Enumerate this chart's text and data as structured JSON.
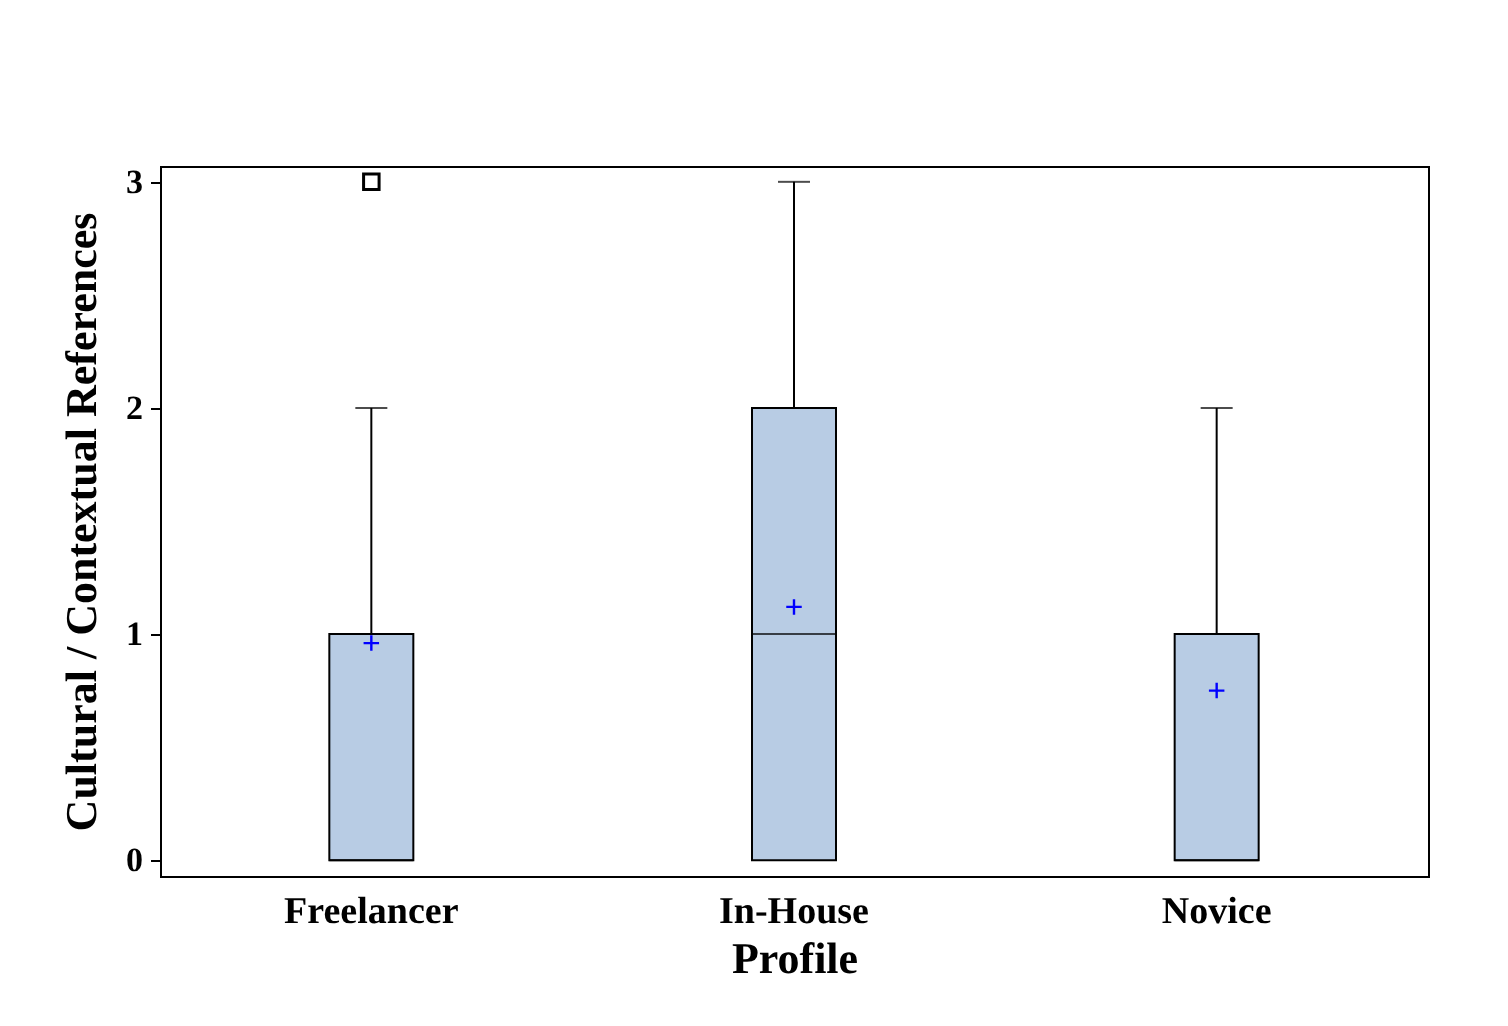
{
  "chart_data": {
    "type": "box",
    "xlabel": "Profile",
    "ylabel": "Cultural / Contextual References",
    "categories": [
      "Freelancer",
      "In-House",
      "Novice"
    ],
    "series": [
      {
        "color": "#b8cce4",
        "boxes": [
          {
            "low": 0,
            "q1": 0,
            "median": 0,
            "q3": 1,
            "high": 2,
            "mean": 0.96,
            "outliers": [
              3
            ]
          },
          {
            "low": 0,
            "q1": 0,
            "median": 1,
            "q3": 2,
            "high": 3,
            "mean": 1.12
          },
          {
            "low": 0,
            "q1": 0,
            "median": 0,
            "q3": 1,
            "high": 2,
            "mean": 0.75
          }
        ]
      }
    ],
    "ylim": [
      -0.07,
      3.07
    ],
    "yticks": [
      0,
      1,
      2,
      3
    ],
    "grid": false
  }
}
